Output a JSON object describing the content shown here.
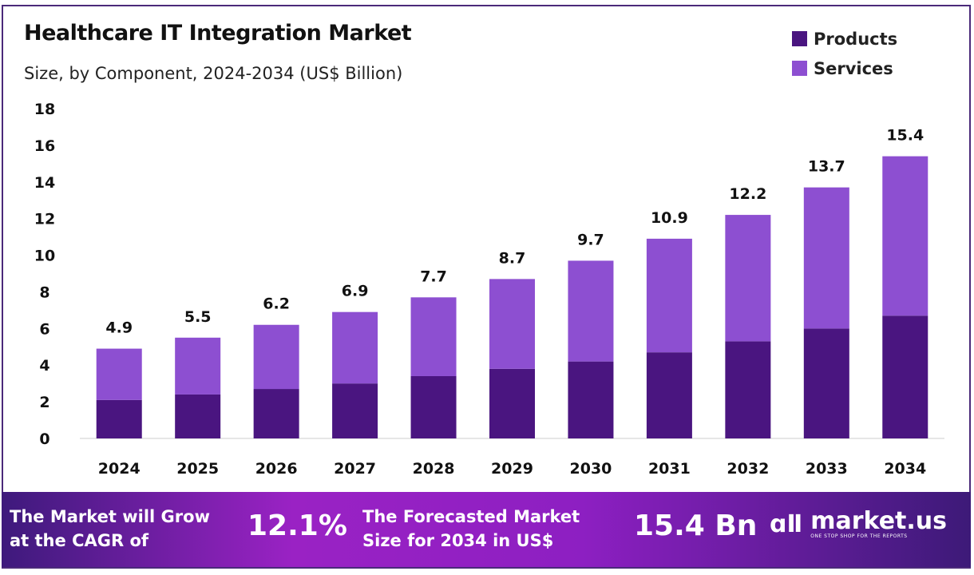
{
  "chart_data": {
    "type": "bar",
    "stacked": true,
    "title": "Healthcare IT Integration Market",
    "subtitle": "Size, by Component, 2024-2034 (US$ Billion)",
    "categories": [
      "2024",
      "2025",
      "2026",
      "2027",
      "2028",
      "2029",
      "2030",
      "2031",
      "2032",
      "2033",
      "2034"
    ],
    "series": [
      {
        "name": "Products",
        "color": "#4a1580",
        "values": [
          2.1,
          2.4,
          2.7,
          3.0,
          3.4,
          3.8,
          4.2,
          4.7,
          5.3,
          6.0,
          6.7
        ]
      },
      {
        "name": "Services",
        "color": "#8d4fd1",
        "values": [
          2.8,
          3.1,
          3.5,
          3.9,
          4.3,
          4.9,
          5.5,
          6.2,
          6.9,
          7.7,
          8.7
        ]
      }
    ],
    "totals": [
      "4.9",
      "5.5",
      "6.2",
      "6.9",
      "7.7",
      "8.7",
      "9.7",
      "10.9",
      "12.2",
      "13.7",
      "15.4"
    ],
    "totals_values": [
      4.9,
      5.5,
      6.2,
      6.9,
      7.7,
      8.7,
      9.7,
      10.9,
      12.2,
      13.7,
      15.4
    ],
    "yticks": [
      "0",
      "2",
      "4",
      "6",
      "8",
      "10",
      "12",
      "14",
      "16",
      "18"
    ],
    "ylim": [
      0,
      18
    ],
    "xlabel": "",
    "ylabel": "",
    "grid": false,
    "legend_position": "top-right"
  },
  "footer": {
    "cagr_text_1": "The Market will Grow",
    "cagr_text_2": "at the CAGR of",
    "cagr_value": "12.1%",
    "forecast_text_1": "The Forecasted Market",
    "forecast_text_2": "Size for 2034 in US$",
    "forecast_value": "15.4 Bn",
    "brand": "market.us",
    "tagline": "ONE STOP SHOP FOR THE REPORTS"
  }
}
